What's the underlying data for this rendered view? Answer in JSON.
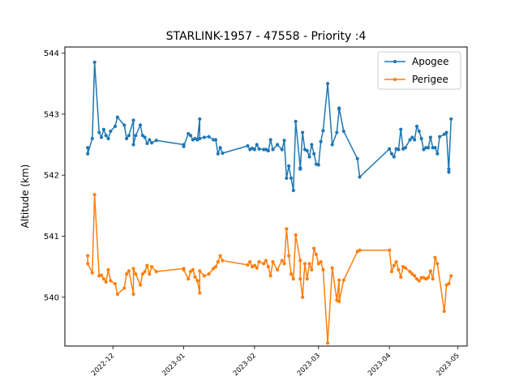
{
  "chart_data": {
    "type": "line",
    "title": "STARLINK-1957 - 47558 - Priority :4",
    "xlabel": "",
    "ylabel": "Altitude (km)",
    "x_axis_type": "date",
    "xlim": [
      "2022-11-10",
      "2023-05-05"
    ],
    "ylim": [
      539.2,
      544.1
    ],
    "x_ticks": [
      "2022-12-01",
      "2023-01-01",
      "2023-02-01",
      "2023-03-01",
      "2023-04-01",
      "2023-05-01"
    ],
    "x_tick_labels": [
      "2022-12",
      "2023-01",
      "2023-02",
      "2023-03",
      "2023-04",
      "2023-05"
    ],
    "y_ticks": [
      540,
      541,
      542,
      543,
      544
    ],
    "y_tick_labels": [
      "540",
      "541",
      "542",
      "543",
      "544"
    ],
    "grid": false,
    "legend_position": "top-right",
    "series": [
      {
        "name": "Apogee",
        "color": "#1f77b4",
        "points": [
          [
            "2022-11-20",
            542.45
          ],
          [
            "2022-11-20",
            542.35
          ],
          [
            "2022-11-22",
            542.6
          ],
          [
            "2022-11-23",
            543.85
          ],
          [
            "2022-11-25",
            542.7
          ],
          [
            "2022-11-26",
            542.62
          ],
          [
            "2022-11-27",
            542.75
          ],
          [
            "2022-11-28",
            542.65
          ],
          [
            "2022-11-29",
            542.6
          ],
          [
            "2022-11-30",
            542.72
          ],
          [
            "2022-12-02",
            542.8
          ],
          [
            "2022-12-03",
            542.95
          ],
          [
            "2022-12-06",
            542.82
          ],
          [
            "2022-12-07",
            542.6
          ],
          [
            "2022-12-08",
            542.65
          ],
          [
            "2022-12-10",
            542.9
          ],
          [
            "2022-12-10",
            542.5
          ],
          [
            "2022-12-11",
            542.65
          ],
          [
            "2022-12-13",
            542.82
          ],
          [
            "2022-12-14",
            542.65
          ],
          [
            "2022-12-15",
            542.62
          ],
          [
            "2022-12-16",
            542.52
          ],
          [
            "2022-12-17",
            542.58
          ],
          [
            "2022-12-18",
            542.53
          ],
          [
            "2022-12-20",
            542.57
          ],
          [
            "2023-01-01",
            542.5
          ],
          [
            "2023-01-01",
            542.47
          ],
          [
            "2023-01-03",
            542.68
          ],
          [
            "2023-01-04",
            542.65
          ],
          [
            "2023-01-05",
            542.58
          ],
          [
            "2023-01-06",
            542.6
          ],
          [
            "2023-01-07",
            542.58
          ],
          [
            "2023-01-08",
            542.92
          ],
          [
            "2023-01-08",
            542.6
          ],
          [
            "2023-01-10",
            542.62
          ],
          [
            "2023-01-12",
            542.63
          ],
          [
            "2023-01-14",
            542.58
          ],
          [
            "2023-01-15",
            542.58
          ],
          [
            "2023-01-16",
            542.35
          ],
          [
            "2023-01-17",
            542.45
          ],
          [
            "2023-01-18",
            542.36
          ],
          [
            "2023-01-29",
            542.48
          ],
          [
            "2023-01-30",
            542.42
          ],
          [
            "2023-01-31",
            542.44
          ],
          [
            "2023-02-01",
            542.42
          ],
          [
            "2023-02-02",
            542.5
          ],
          [
            "2023-02-03",
            542.43
          ],
          [
            "2023-02-05",
            542.42
          ],
          [
            "2023-02-06",
            542.42
          ],
          [
            "2023-02-07",
            542.4
          ],
          [
            "2023-02-08",
            542.58
          ],
          [
            "2023-02-09",
            542.42
          ],
          [
            "2023-02-11",
            542.5
          ],
          [
            "2023-02-13",
            542.42
          ],
          [
            "2023-02-14",
            542.57
          ],
          [
            "2023-02-15",
            541.95
          ],
          [
            "2023-02-16",
            542.15
          ],
          [
            "2023-02-17",
            541.95
          ],
          [
            "2023-02-18",
            541.75
          ],
          [
            "2023-02-19",
            542.88
          ],
          [
            "2023-02-21",
            542.12
          ],
          [
            "2023-02-21",
            542.1
          ],
          [
            "2023-02-22",
            542.7
          ],
          [
            "2023-02-23",
            542.42
          ],
          [
            "2023-02-24",
            542.4
          ],
          [
            "2023-02-25",
            542.3
          ],
          [
            "2023-02-26",
            542.5
          ],
          [
            "2023-02-27",
            542.35
          ],
          [
            "2023-02-28",
            542.18
          ],
          [
            "2023-03-01",
            542.17
          ],
          [
            "2023-03-02",
            542.55
          ],
          [
            "2023-03-03",
            542.73
          ],
          [
            "2023-03-05",
            543.5
          ],
          [
            "2023-03-07",
            542.5
          ],
          [
            "2023-03-09",
            542.7
          ],
          [
            "2023-03-10",
            543.08
          ],
          [
            "2023-03-10",
            543.1
          ],
          [
            "2023-03-12",
            542.72
          ],
          [
            "2023-03-18",
            542.27
          ],
          [
            "2023-03-19",
            541.97
          ],
          [
            "2023-04-01",
            542.43
          ],
          [
            "2023-04-02",
            542.35
          ],
          [
            "2023-04-03",
            542.3
          ],
          [
            "2023-04-04",
            542.43
          ],
          [
            "2023-04-05",
            542.42
          ],
          [
            "2023-04-06",
            542.75
          ],
          [
            "2023-04-07",
            542.43
          ],
          [
            "2023-04-08",
            542.45
          ],
          [
            "2023-04-10",
            542.58
          ],
          [
            "2023-04-11",
            542.62
          ],
          [
            "2023-04-12",
            542.58
          ],
          [
            "2023-04-13",
            542.8
          ],
          [
            "2023-04-14",
            542.72
          ],
          [
            "2023-04-15",
            542.6
          ],
          [
            "2023-04-16",
            542.42
          ],
          [
            "2023-04-17",
            542.45
          ],
          [
            "2023-04-18",
            542.45
          ],
          [
            "2023-04-19",
            542.62
          ],
          [
            "2023-04-20",
            542.45
          ],
          [
            "2023-04-21",
            542.45
          ],
          [
            "2023-04-22",
            542.35
          ],
          [
            "2023-04-23",
            542.63
          ],
          [
            "2023-04-25",
            542.67
          ],
          [
            "2023-04-26",
            542.7
          ],
          [
            "2023-04-27",
            542.05
          ],
          [
            "2023-04-27",
            542.1
          ],
          [
            "2023-04-28",
            542.92
          ]
        ]
      },
      {
        "name": "Perigee",
        "color": "#ff7f0e",
        "points": [
          [
            "2022-11-20",
            540.68
          ],
          [
            "2022-11-20",
            540.55
          ],
          [
            "2022-11-22",
            540.4
          ],
          [
            "2022-11-23",
            541.68
          ],
          [
            "2022-11-25",
            540.35
          ],
          [
            "2022-11-26",
            540.36
          ],
          [
            "2022-11-27",
            540.3
          ],
          [
            "2022-11-28",
            540.25
          ],
          [
            "2022-11-29",
            540.45
          ],
          [
            "2022-11-30",
            540.27
          ],
          [
            "2022-12-02",
            540.22
          ],
          [
            "2022-12-03",
            540.05
          ],
          [
            "2022-12-06",
            540.15
          ],
          [
            "2022-12-07",
            540.38
          ],
          [
            "2022-12-08",
            540.43
          ],
          [
            "2022-12-10",
            540.05
          ],
          [
            "2022-12-10",
            540.47
          ],
          [
            "2022-12-11",
            540.38
          ],
          [
            "2022-12-13",
            540.2
          ],
          [
            "2022-12-14",
            540.38
          ],
          [
            "2022-12-15",
            540.42
          ],
          [
            "2022-12-16",
            540.52
          ],
          [
            "2022-12-17",
            540.38
          ],
          [
            "2022-12-18",
            540.5
          ],
          [
            "2022-12-20",
            540.42
          ],
          [
            "2023-01-01",
            540.47
          ],
          [
            "2023-01-01",
            540.45
          ],
          [
            "2023-01-03",
            540.3
          ],
          [
            "2023-01-04",
            540.42
          ],
          [
            "2023-01-05",
            540.45
          ],
          [
            "2023-01-06",
            540.33
          ],
          [
            "2023-01-07",
            540.27
          ],
          [
            "2023-01-08",
            540.07
          ],
          [
            "2023-01-08",
            540.43
          ],
          [
            "2023-01-10",
            540.35
          ],
          [
            "2023-01-12",
            540.38
          ],
          [
            "2023-01-14",
            540.47
          ],
          [
            "2023-01-15",
            540.5
          ],
          [
            "2023-01-16",
            540.58
          ],
          [
            "2023-01-17",
            540.68
          ],
          [
            "2023-01-18",
            540.6
          ],
          [
            "2023-01-29",
            540.53
          ],
          [
            "2023-01-30",
            540.58
          ],
          [
            "2023-01-31",
            540.5
          ],
          [
            "2023-02-01",
            540.52
          ],
          [
            "2023-02-02",
            540.48
          ],
          [
            "2023-02-03",
            540.58
          ],
          [
            "2023-02-05",
            540.55
          ],
          [
            "2023-02-06",
            540.6
          ],
          [
            "2023-02-07",
            540.5
          ],
          [
            "2023-02-08",
            540.35
          ],
          [
            "2023-02-09",
            540.58
          ],
          [
            "2023-02-11",
            540.45
          ],
          [
            "2023-02-13",
            540.6
          ],
          [
            "2023-02-14",
            540.55
          ],
          [
            "2023-02-15",
            541.12
          ],
          [
            "2023-02-16",
            540.68
          ],
          [
            "2023-02-17",
            540.38
          ],
          [
            "2023-02-18",
            540.3
          ],
          [
            "2023-02-19",
            541.02
          ],
          [
            "2023-02-21",
            540.6
          ],
          [
            "2023-02-21",
            540.3
          ],
          [
            "2023-02-22",
            540.0
          ],
          [
            "2023-02-23",
            540.55
          ],
          [
            "2023-02-24",
            540.3
          ],
          [
            "2023-02-25",
            540.55
          ],
          [
            "2023-02-26",
            540.45
          ],
          [
            "2023-02-27",
            540.8
          ],
          [
            "2023-02-28",
            540.7
          ],
          [
            "2023-03-01",
            540.55
          ],
          [
            "2023-03-02",
            540.58
          ],
          [
            "2023-03-03",
            540.45
          ],
          [
            "2023-03-05",
            539.25
          ],
          [
            "2023-03-07",
            540.48
          ],
          [
            "2023-03-09",
            539.95
          ],
          [
            "2023-03-10",
            540.28
          ],
          [
            "2023-03-10",
            539.93
          ],
          [
            "2023-03-12",
            540.28
          ],
          [
            "2023-03-18",
            540.75
          ],
          [
            "2023-03-19",
            540.77
          ],
          [
            "2023-04-01",
            540.77
          ],
          [
            "2023-04-02",
            540.42
          ],
          [
            "2023-04-03",
            540.52
          ],
          [
            "2023-04-04",
            540.58
          ],
          [
            "2023-04-05",
            540.45
          ],
          [
            "2023-04-06",
            540.33
          ],
          [
            "2023-04-07",
            540.5
          ],
          [
            "2023-04-08",
            540.48
          ],
          [
            "2023-04-10",
            540.42
          ],
          [
            "2023-04-11",
            540.38
          ],
          [
            "2023-04-12",
            540.35
          ],
          [
            "2023-04-13",
            540.3
          ],
          [
            "2023-04-14",
            540.27
          ],
          [
            "2023-04-15",
            540.32
          ],
          [
            "2023-04-16",
            540.32
          ],
          [
            "2023-04-17",
            540.3
          ],
          [
            "2023-04-18",
            540.32
          ],
          [
            "2023-04-19",
            540.43
          ],
          [
            "2023-04-20",
            540.3
          ],
          [
            "2023-04-21",
            540.65
          ],
          [
            "2023-04-22",
            540.55
          ],
          [
            "2023-04-25",
            539.77
          ],
          [
            "2023-04-26",
            540.2
          ],
          [
            "2023-04-27",
            540.22
          ],
          [
            "2023-04-28",
            540.35
          ]
        ]
      }
    ]
  }
}
